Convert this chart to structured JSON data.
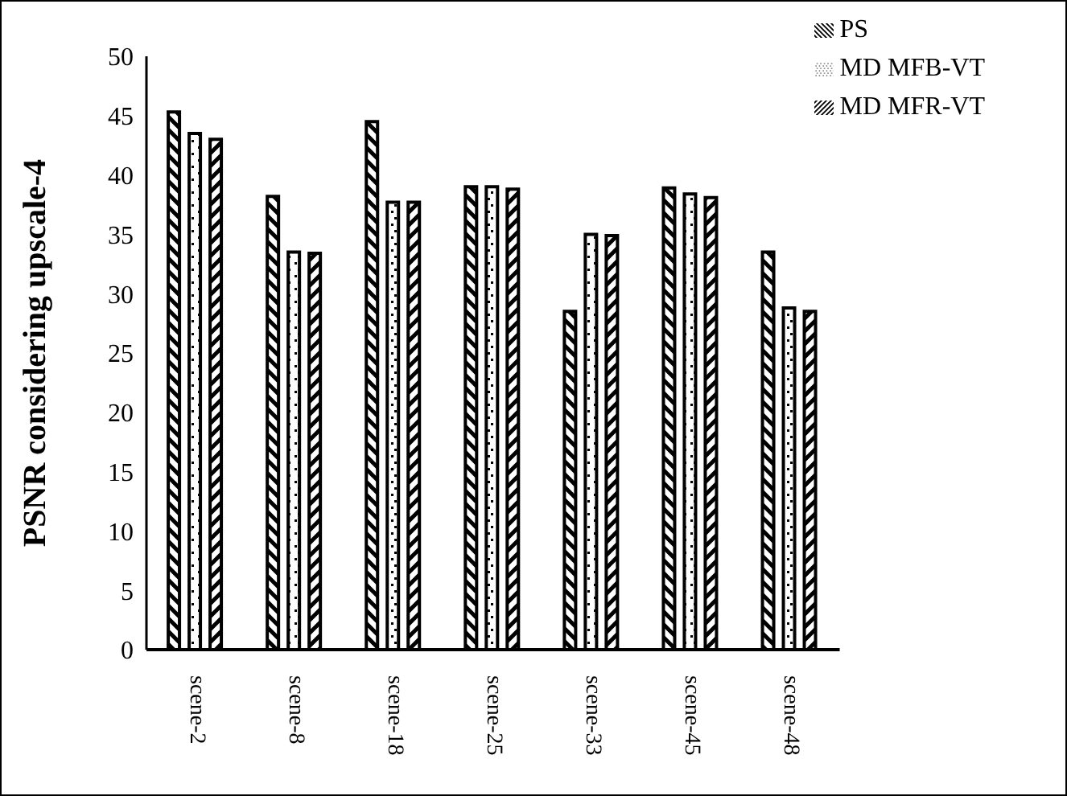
{
  "chart_data": {
    "type": "bar",
    "ylabel": "PSNR considering upscale-4",
    "categories": [
      "scene-2",
      "scene-8",
      "scene-18",
      "scene-25",
      "scene-33",
      "scene-45",
      "scene-48"
    ],
    "series": [
      {
        "name": "PS",
        "color": "#000000",
        "values": [
          45.3,
          38.2,
          44.5,
          39.0,
          28.5,
          38.9,
          33.5
        ]
      },
      {
        "name": "MD MFB-VT",
        "color": "#000000",
        "values": [
          43.5,
          33.5,
          37.7,
          39.0,
          35.0,
          38.4,
          28.8
        ]
      },
      {
        "name": "MD MFR-VT",
        "color": "#000000",
        "values": [
          43.0,
          33.4,
          37.7,
          38.8,
          34.9,
          38.1,
          28.5
        ]
      }
    ],
    "ylim": [
      0,
      50
    ],
    "yticks": [
      0,
      5,
      10,
      15,
      20,
      25,
      30,
      35,
      40,
      45,
      50
    ],
    "grid": false,
    "legend": "top right"
  }
}
